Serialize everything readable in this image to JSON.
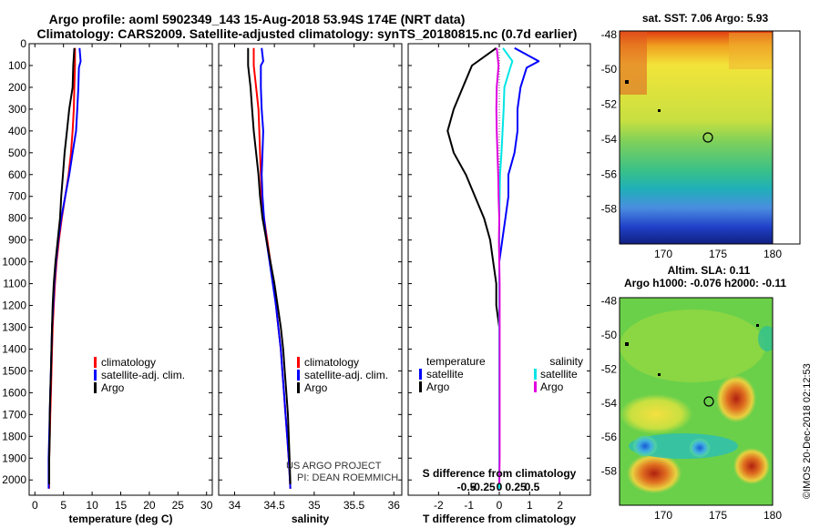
{
  "title": {
    "line1": "Argo profile: aoml 5902349_143 15-Aug-2018 53.94S 174E (NRT data)",
    "line2": "Climatology: CARS2009. Satellite-adjusted climatology: synTS_20180815.nc (0.7d earlier)"
  },
  "credits": {
    "project": "US ARGO PROJECT",
    "pi": "PI: DEAN ROEMMICH",
    "imos": "©IMOS 20-Dec-2018 02:12:53"
  },
  "colors": {
    "climatology": "#ff0000",
    "satellite": "#0000ff",
    "argo": "#000000",
    "salinity_satellite": "#00e5e5",
    "salinity_argo": "#e000e0"
  },
  "chart_data": [
    {
      "type": "line",
      "id": "temperature",
      "xlabel": "temperature (deg C)",
      "xlim": [
        -1,
        31
      ],
      "xticks": [
        0,
        5,
        10,
        15,
        20,
        25,
        30
      ],
      "ylim": [
        2070,
        0
      ],
      "yticks": [
        0,
        100,
        200,
        300,
        400,
        500,
        600,
        700,
        800,
        900,
        1000,
        1100,
        1200,
        1300,
        1400,
        1500,
        1600,
        1700,
        1800,
        1900,
        2000
      ],
      "legend": [
        "climatology",
        "satellite-adj. clim.",
        "Argo"
      ],
      "series": [
        {
          "name": "climatology",
          "color": "#ff0000",
          "points": [
            [
              7.0,
              20
            ],
            [
              7.0,
              100
            ],
            [
              6.9,
              200
            ],
            [
              6.8,
              300
            ],
            [
              6.6,
              400
            ],
            [
              6.3,
              500
            ],
            [
              5.9,
              600
            ],
            [
              5.3,
              700
            ],
            [
              4.7,
              800
            ],
            [
              4.2,
              900
            ],
            [
              3.8,
              1000
            ],
            [
              3.5,
              1100
            ],
            [
              3.3,
              1200
            ],
            [
              3.1,
              1300
            ],
            [
              3.0,
              1400
            ],
            [
              2.9,
              1500
            ],
            [
              2.8,
              1600
            ],
            [
              2.7,
              1700
            ],
            [
              2.6,
              1800
            ],
            [
              2.5,
              1900
            ],
            [
              2.5,
              2040
            ]
          ]
        },
        {
          "name": "satellite-adj. clim.",
          "color": "#0000ff",
          "points": [
            [
              7.8,
              20
            ],
            [
              8.0,
              80
            ],
            [
              7.7,
              110
            ],
            [
              7.6,
              200
            ],
            [
              7.4,
              300
            ],
            [
              7.2,
              400
            ],
            [
              6.6,
              500
            ],
            [
              6.0,
              600
            ],
            [
              5.3,
              700
            ],
            [
              4.6,
              800
            ],
            [
              4.1,
              900
            ],
            [
              3.7,
              1000
            ],
            [
              3.4,
              1100
            ],
            [
              3.2,
              1200
            ],
            [
              3.0,
              1300
            ],
            [
              2.9,
              1400
            ],
            [
              2.8,
              1500
            ],
            [
              2.7,
              1600
            ],
            [
              2.6,
              1700
            ],
            [
              2.5,
              1800
            ],
            [
              2.4,
              1900
            ],
            [
              2.4,
              2040
            ]
          ]
        },
        {
          "name": "Argo",
          "color": "#000000",
          "points": [
            [
              6.9,
              20
            ],
            [
              6.7,
              100
            ],
            [
              6.6,
              200
            ],
            [
              6.0,
              300
            ],
            [
              5.6,
              400
            ],
            [
              5.2,
              500
            ],
            [
              4.9,
              600
            ],
            [
              4.6,
              700
            ],
            [
              4.4,
              800
            ],
            [
              4.0,
              900
            ],
            [
              3.6,
              1000
            ],
            [
              3.3,
              1100
            ],
            [
              3.1,
              1200
            ],
            [
              3.0,
              1300
            ],
            [
              2.9,
              1400
            ],
            [
              2.8,
              1500
            ],
            [
              2.7,
              1600
            ],
            [
              2.6,
              1700
            ],
            [
              2.6,
              1800
            ],
            [
              2.5,
              1900
            ],
            [
              2.5,
              2020
            ]
          ]
        }
      ]
    },
    {
      "type": "line",
      "id": "salinity",
      "xlabel": "salinity",
      "xlim": [
        33.8,
        36.1
      ],
      "xticks": [
        34,
        34.5,
        35,
        35.5,
        36
      ],
      "xticklabels": [
        "34",
        "34.5",
        "35",
        "35.5",
        "36"
      ],
      "ylim": [
        2070,
        0
      ],
      "legend": [
        "climatology",
        "satellite-adj. clim.",
        "Argo"
      ],
      "series": [
        {
          "name": "climatology",
          "color": "#ff0000",
          "points": [
            [
              34.24,
              20
            ],
            [
              34.24,
              100
            ],
            [
              34.27,
              200
            ],
            [
              34.3,
              300
            ],
            [
              34.31,
              400
            ],
            [
              34.32,
              500
            ],
            [
              34.33,
              600
            ],
            [
              34.34,
              700
            ],
            [
              34.37,
              800
            ],
            [
              34.41,
              900
            ],
            [
              34.45,
              1000
            ],
            [
              34.49,
              1100
            ],
            [
              34.52,
              1200
            ],
            [
              34.55,
              1300
            ],
            [
              34.58,
              1400
            ],
            [
              34.6,
              1500
            ],
            [
              34.62,
              1600
            ],
            [
              34.64,
              1700
            ],
            [
              34.66,
              1800
            ],
            [
              34.68,
              1900
            ],
            [
              34.7,
              2040
            ]
          ]
        },
        {
          "name": "satellite-adj. clim.",
          "color": "#0000ff",
          "points": [
            [
              34.34,
              20
            ],
            [
              34.36,
              80
            ],
            [
              34.33,
              100
            ],
            [
              34.33,
              200
            ],
            [
              34.34,
              300
            ],
            [
              34.36,
              400
            ],
            [
              34.35,
              500
            ],
            [
              34.34,
              600
            ],
            [
              34.35,
              700
            ],
            [
              34.37,
              800
            ],
            [
              34.4,
              900
            ],
            [
              34.44,
              1000
            ],
            [
              34.48,
              1100
            ],
            [
              34.52,
              1200
            ],
            [
              34.55,
              1300
            ],
            [
              34.58,
              1400
            ],
            [
              34.6,
              1500
            ],
            [
              34.62,
              1600
            ],
            [
              34.64,
              1700
            ],
            [
              34.66,
              1800
            ],
            [
              34.68,
              1900
            ],
            [
              34.7,
              2040
            ]
          ]
        },
        {
          "name": "Argo",
          "color": "#000000",
          "points": [
            [
              34.17,
              20
            ],
            [
              34.17,
              100
            ],
            [
              34.2,
              200
            ],
            [
              34.22,
              300
            ],
            [
              34.24,
              400
            ],
            [
              34.27,
              500
            ],
            [
              34.3,
              600
            ],
            [
              34.32,
              700
            ],
            [
              34.35,
              800
            ],
            [
              34.4,
              900
            ],
            [
              34.45,
              1000
            ],
            [
              34.5,
              1100
            ],
            [
              34.54,
              1200
            ],
            [
              34.58,
              1300
            ],
            [
              34.61,
              1400
            ],
            [
              34.63,
              1500
            ],
            [
              34.65,
              1600
            ],
            [
              34.67,
              1700
            ],
            [
              34.68,
              1800
            ],
            [
              34.69,
              1900
            ],
            [
              34.7,
              2020
            ]
          ]
        }
      ],
      "credits": [
        "US ARGO PROJECT",
        "PI: DEAN ROEMMICH"
      ]
    },
    {
      "type": "line",
      "id": "differences",
      "xlabel": "T difference from climatology",
      "xlim": [
        -3,
        3
      ],
      "xticks": [
        -2,
        -1,
        0,
        1,
        2
      ],
      "xticklabels": [
        "-2",
        "-1",
        "0",
        "1",
        "2"
      ],
      "secondary_xlabel": "S difference from climatology",
      "secondary_xticklabels": [
        "-0.5",
        "-0.25",
        "0",
        "0.25",
        "0.5"
      ],
      "ylim": [
        2070,
        0
      ],
      "legend_temperature_header": "temperature",
      "legend_salinity_header": "salinity",
      "legend": [
        "satellite",
        "Argo",
        "satellite",
        "Argo"
      ],
      "series": [
        {
          "name": "temperature satellite",
          "color": "#0000ff",
          "points": [
            [
              0.5,
              20
            ],
            [
              1.3,
              80
            ],
            [
              0.9,
              110
            ],
            [
              0.7,
              200
            ],
            [
              0.6,
              300
            ],
            [
              0.6,
              400
            ],
            [
              0.5,
              500
            ],
            [
              0.3,
              600
            ],
            [
              0.3,
              700
            ],
            [
              0.2,
              800
            ],
            [
              0.1,
              900
            ],
            [
              0.0,
              1000
            ],
            [
              0,
              1100
            ],
            [
              0,
              1500
            ],
            [
              0,
              2040
            ]
          ]
        },
        {
          "name": "temperature Argo",
          "color": "#000000",
          "points": [
            [
              -0.1,
              20
            ],
            [
              -0.9,
              100
            ],
            [
              -1.2,
              200
            ],
            [
              -1.5,
              300
            ],
            [
              -1.7,
              400
            ],
            [
              -1.5,
              500
            ],
            [
              -1.1,
              600
            ],
            [
              -0.8,
              700
            ],
            [
              -0.5,
              800
            ],
            [
              -0.3,
              900
            ],
            [
              -0.2,
              1000
            ],
            [
              -0.1,
              1100
            ],
            [
              -0.1,
              1200
            ],
            [
              0,
              1300
            ],
            [
              0,
              1500
            ],
            [
              0,
              2020
            ]
          ]
        },
        {
          "name": "salinity satellite",
          "color": "#00e5e5",
          "points": [
            [
              0.1,
              20
            ],
            [
              0.36,
              80
            ],
            [
              0.3,
              110
            ],
            [
              0.14,
              200
            ],
            [
              0.12,
              300
            ],
            [
              0.09,
              400
            ],
            [
              0.06,
              500
            ],
            [
              0.02,
              600
            ],
            [
              0.01,
              700
            ],
            [
              0.0,
              800
            ],
            [
              0.0,
              900
            ],
            [
              0,
              1000
            ],
            [
              0,
              1500
            ],
            [
              0,
              2040
            ]
          ]
        },
        {
          "name": "salinity Argo",
          "color": "#e000e0",
          "points": [
            [
              -0.07,
              20
            ],
            [
              -0.02,
              100
            ],
            [
              -0.07,
              200
            ],
            [
              -0.08,
              300
            ],
            [
              -0.07,
              400
            ],
            [
              -0.05,
              500
            ],
            [
              -0.03,
              600
            ],
            [
              -0.02,
              700
            ],
            [
              0.0,
              800
            ],
            [
              -0.01,
              900
            ],
            [
              0.0,
              1000
            ],
            [
              0.01,
              1100
            ],
            [
              0.01,
              1200
            ],
            [
              0.01,
              1300
            ],
            [
              0.01,
              1400
            ],
            [
              0.01,
              1500
            ],
            [
              0.01,
              1600
            ],
            [
              0.01,
              1700
            ],
            [
              0.01,
              1800
            ],
            [
              0.01,
              1900
            ],
            [
              0.0,
              2020
            ]
          ]
        }
      ]
    },
    {
      "type": "heatmap",
      "id": "sst-map",
      "title": "sat. SST: 7.06 Argo: 5.93",
      "xlim": [
        166,
        181
      ],
      "xticks": [
        170,
        175,
        180
      ],
      "ylim": [
        -60,
        -48
      ],
      "yticks": [
        -48,
        -50,
        -52,
        -54,
        -56,
        -58
      ],
      "argo_position": [
        174,
        -54
      ]
    },
    {
      "type": "heatmap",
      "id": "sla-map",
      "title": "Altim. SLA: 0.11",
      "subtitle": "Argo h1000: -0.076 h2000: -0.11",
      "xlim": [
        166,
        181
      ],
      "xticks": [
        170,
        175,
        180
      ],
      "ylim": [
        -60,
        -48
      ],
      "yticks": [
        -48,
        -50,
        -52,
        -54,
        -56,
        -58
      ],
      "argo_position": [
        174,
        -54
      ]
    }
  ]
}
